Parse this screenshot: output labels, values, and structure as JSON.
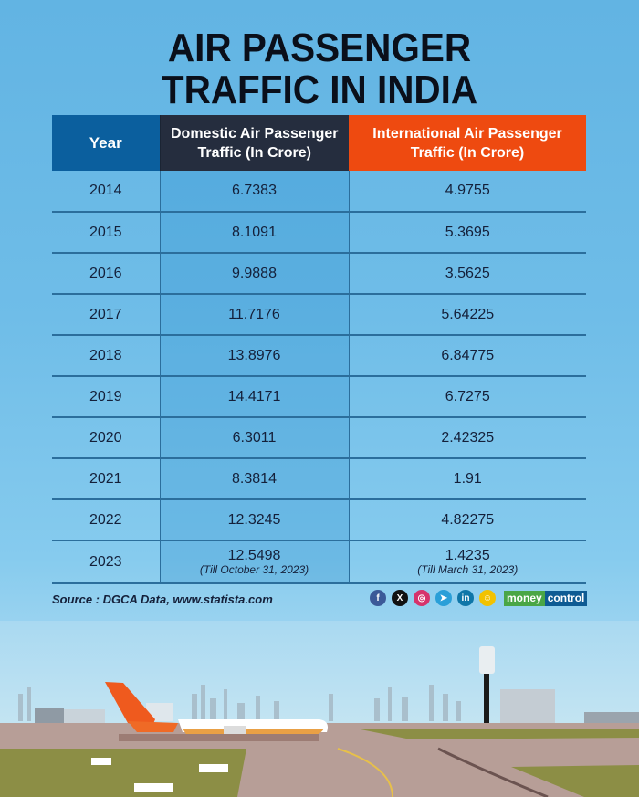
{
  "title_lines": [
    "AIR PASSENGER",
    "TRAFFIC IN INDIA"
  ],
  "colors": {
    "year_header": "#0b5f9e",
    "domestic_header": "#252d3e",
    "international_header": "#ee4a10",
    "background": "#6fbde8"
  },
  "chart_data": {
    "type": "table",
    "title": "AIR PASSENGER TRAFFIC IN INDIA",
    "columns": [
      "Year",
      "Domestic Air Passenger Traffic (In Crore)",
      "International Air Passenger Traffic (In Crore)"
    ],
    "rows": [
      {
        "year": "2014",
        "domestic": "6.7383",
        "international": "4.9755"
      },
      {
        "year": "2015",
        "domestic": "8.1091",
        "international": "5.3695"
      },
      {
        "year": "2016",
        "domestic": "9.9888",
        "international": "3.5625"
      },
      {
        "year": "2017",
        "domestic": "11.7176",
        "international": "5.64225"
      },
      {
        "year": "2018",
        "domestic": "13.8976",
        "international": "6.84775"
      },
      {
        "year": "2019",
        "domestic": "14.4171",
        "international": "6.7275"
      },
      {
        "year": "2020",
        "domestic": "6.3011",
        "international": "2.42325"
      },
      {
        "year": "2021",
        "domestic": "8.3814",
        "international": "1.91"
      },
      {
        "year": "2022",
        "domestic": "12.3245",
        "international": "4.82275"
      },
      {
        "year": "2023",
        "domestic": "12.5498",
        "international": "1.4235",
        "domestic_note": "(Till October 31, 2023)",
        "international_note": "(Till March 31, 2023)"
      }
    ]
  },
  "footer": {
    "source": "Source : DGCA Data, www.statista.com",
    "social_icons": [
      "facebook-icon",
      "x-icon",
      "instagram-icon",
      "telegram-icon",
      "linkedin-icon",
      "snapchat-icon"
    ],
    "social_glyphs": [
      "f",
      "X",
      "◎",
      "➤",
      "in",
      "☺"
    ],
    "brand": [
      "money",
      "control"
    ]
  }
}
